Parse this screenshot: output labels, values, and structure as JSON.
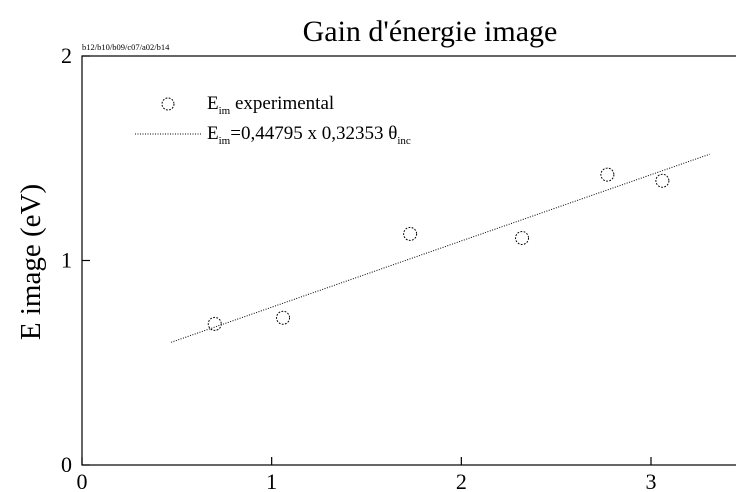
{
  "chart_data": {
    "type": "scatter",
    "title": "Gain d'énergie image",
    "tag": "b12/b10/b09/c07/a02/b14",
    "xlabel": "",
    "ylabel": "E image (eV)",
    "xlim": [
      0,
      3.5
    ],
    "ylim": [
      0,
      2
    ],
    "xticks": [
      "0",
      "1",
      "2",
      "3"
    ],
    "yticks": [
      "0",
      "1",
      "2"
    ],
    "grid": false,
    "legend_placement": "top-left",
    "series": [
      {
        "name": "E_im experimental",
        "legend_main": "E",
        "legend_sub": "im",
        "legend_rest": " experimental",
        "kind": "markers",
        "marker": "open-circle",
        "points": [
          {
            "x": 0.7,
            "y": 0.69
          },
          {
            "x": 1.06,
            "y": 0.72
          },
          {
            "x": 1.73,
            "y": 1.13
          },
          {
            "x": 2.32,
            "y": 1.11
          },
          {
            "x": 2.77,
            "y": 1.42
          },
          {
            "x": 3.06,
            "y": 1.39
          }
        ]
      },
      {
        "name": "E_im=0,44795 x 0,32353 θ_inc",
        "legend_main": "E",
        "legend_sub": "im",
        "legend_rest": "=0,44795 x 0,32353 θ",
        "legend_sub2": "inc",
        "kind": "line",
        "style": "dotted",
        "points": [
          {
            "x": 0.47,
            "y": 0.6
          },
          {
            "x": 3.31,
            "y": 1.52
          }
        ]
      }
    ]
  }
}
